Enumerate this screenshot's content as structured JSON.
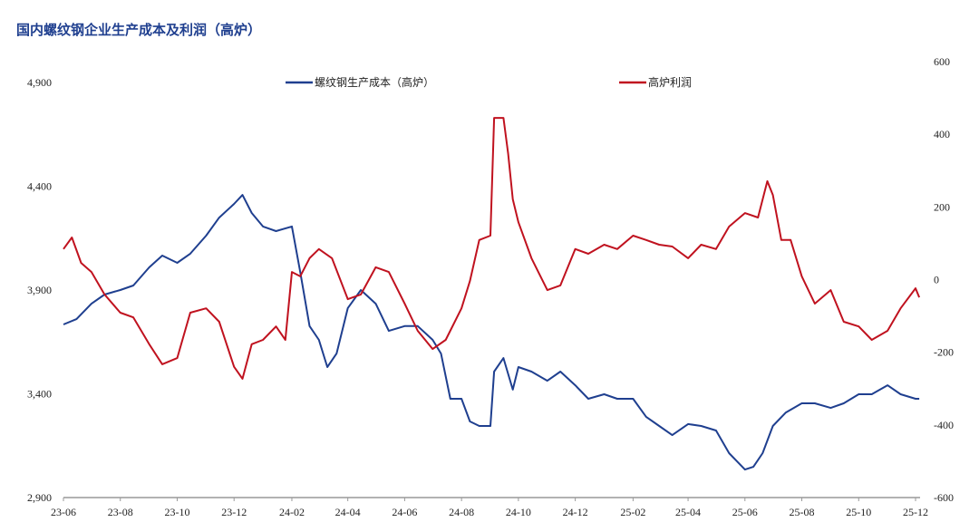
{
  "chart_data": {
    "type": "line",
    "title": "国内螺纹钢企业生产成本及利润（高炉）",
    "x_tick_labels": [
      "23-06",
      "23-08",
      "23-10",
      "23-12",
      "24-02",
      "24-04",
      "24-06",
      "24-08",
      "24-10",
      "24-12",
      "25-02",
      "25-04",
      "25-06",
      "25-08",
      "25-10",
      "25-12"
    ],
    "x_ticks": [
      "2023-06-01",
      "2023-08-01",
      "2023-10-01",
      "2023-12-01",
      "2024-02-01",
      "2024-04-01",
      "2024-06-01",
      "2024-08-01",
      "2024-10-01",
      "2024-12-01",
      "2025-02-01",
      "2025-04-01",
      "2025-06-01",
      "2025-08-01",
      "2025-10-01",
      "2025-12-01"
    ],
    "y_left": {
      "range": [
        2900,
        4900
      ],
      "ticks": [
        2900,
        3400,
        3900,
        4400,
        4900
      ],
      "tick_labels": [
        "2,900",
        "3,400",
        "3,900",
        "4,400",
        "4,900"
      ]
    },
    "y_right": {
      "range": [
        -600,
        600
      ],
      "ticks": [
        -600,
        -400,
        -200,
        0,
        200,
        400,
        600
      ],
      "tick_labels": [
        "-600",
        "-400",
        "-200",
        "0",
        "200",
        "400",
        "600"
      ]
    },
    "grid": false,
    "legend_placement": "top",
    "series": [
      {
        "name": "螺纹钢生产成本（高炉）",
        "axis": "left",
        "color": "#1f3f8f",
        "x": [
          "2023-06-01",
          "2023-06-15",
          "2023-07-01",
          "2023-07-15",
          "2023-08-01",
          "2023-08-15",
          "2023-09-01",
          "2023-09-15",
          "2023-10-01",
          "2023-10-15",
          "2023-11-01",
          "2023-11-15",
          "2023-12-01",
          "2023-12-10",
          "2023-12-20",
          "2024-01-01",
          "2024-01-15",
          "2024-02-01",
          "2024-02-10",
          "2024-02-20",
          "2024-03-01",
          "2024-03-10",
          "2024-03-20",
          "2024-04-01",
          "2024-04-15",
          "2024-05-01",
          "2024-05-15",
          "2024-06-01",
          "2024-06-15",
          "2024-07-01",
          "2024-07-10",
          "2024-07-20",
          "2024-08-01",
          "2024-08-10",
          "2024-08-20",
          "2024-09-01",
          "2024-09-05",
          "2024-09-15",
          "2024-09-25",
          "2024-10-01",
          "2024-10-15",
          "2024-11-01",
          "2024-11-15",
          "2024-12-01",
          "2024-12-15",
          "2025-01-01",
          "2025-01-15",
          "2025-02-01",
          "2025-02-15",
          "2025-03-01",
          "2025-03-15",
          "2025-04-01",
          "2025-04-15",
          "2025-05-01",
          "2025-05-15",
          "2025-06-01",
          "2025-06-10",
          "2025-06-20",
          "2025-07-01",
          "2025-07-15",
          "2025-08-01",
          "2025-08-15",
          "2025-09-01",
          "2025-09-15",
          "2025-10-01",
          "2025-10-15",
          "2025-11-01",
          "2025-11-15",
          "2025-12-01",
          "2025-12-05"
        ],
        "values": [
          3734,
          3760,
          3834,
          3878,
          3900,
          3922,
          4009,
          4066,
          4031,
          4075,
          4162,
          4249,
          4315,
          4358,
          4271,
          4206,
          4184,
          4206,
          3987,
          3726,
          3660,
          3529,
          3594,
          3813,
          3900,
          3834,
          3703,
          3726,
          3726,
          3660,
          3594,
          3376,
          3376,
          3267,
          3245,
          3245,
          3507,
          3572,
          3420,
          3529,
          3507,
          3463,
          3507,
          3441,
          3376,
          3398,
          3376,
          3376,
          3289,
          3245,
          3201,
          3254,
          3245,
          3223,
          3114,
          3035,
          3048,
          3114,
          3245,
          3310,
          3354,
          3354,
          3332,
          3354,
          3398,
          3398,
          3441,
          3398,
          3376,
          3376
        ]
      },
      {
        "name": "高炉利润",
        "axis": "right",
        "color": "#c0121f",
        "x": [
          "2023-06-01",
          "2023-06-10",
          "2023-06-20",
          "2023-07-01",
          "2023-07-15",
          "2023-08-01",
          "2023-08-15",
          "2023-09-01",
          "2023-09-15",
          "2023-10-01",
          "2023-10-15",
          "2023-11-01",
          "2023-11-15",
          "2023-12-01",
          "2023-12-10",
          "2023-12-20",
          "2024-01-01",
          "2024-01-15",
          "2024-01-25",
          "2024-02-01",
          "2024-02-10",
          "2024-02-20",
          "2024-03-01",
          "2024-03-15",
          "2024-04-01",
          "2024-04-15",
          "2024-05-01",
          "2024-05-15",
          "2024-06-01",
          "2024-06-15",
          "2024-07-01",
          "2024-07-15",
          "2024-08-01",
          "2024-08-10",
          "2024-08-20",
          "2024-09-01",
          "2024-09-05",
          "2024-09-15",
          "2024-09-20",
          "2024-09-25",
          "2024-10-01",
          "2024-10-15",
          "2024-11-01",
          "2024-11-15",
          "2024-12-01",
          "2024-12-15",
          "2025-01-01",
          "2025-01-15",
          "2025-02-01",
          "2025-02-15",
          "2025-03-01",
          "2025-03-15",
          "2025-04-01",
          "2025-04-15",
          "2025-05-01",
          "2025-05-15",
          "2025-06-01",
          "2025-06-15",
          "2025-06-25",
          "2025-07-01",
          "2025-07-10",
          "2025-07-20",
          "2025-08-01",
          "2025-08-15",
          "2025-09-01",
          "2025-09-15",
          "2025-10-01",
          "2025-10-15",
          "2025-11-01",
          "2025-11-15",
          "2025-12-01",
          "2025-12-05"
        ],
        "values": [
          84,
          116,
          46,
          21,
          -41,
          -91,
          -104,
          -178,
          -233,
          -216,
          -91,
          -79,
          -116,
          -240,
          -273,
          -178,
          -166,
          -129,
          -166,
          21,
          9,
          59,
          84,
          59,
          -54,
          -41,
          34,
          21,
          -66,
          -141,
          -191,
          -166,
          -79,
          -4,
          109,
          121,
          445,
          445,
          346,
          221,
          158,
          59,
          -29,
          -16,
          84,
          71,
          96,
          84,
          121,
          109,
          96,
          91,
          59,
          96,
          84,
          146,
          183,
          171,
          271,
          233,
          109,
          109,
          9,
          -66,
          -29,
          -116,
          -129,
          -166,
          -141,
          -79,
          -24,
          -49
        ]
      }
    ]
  }
}
